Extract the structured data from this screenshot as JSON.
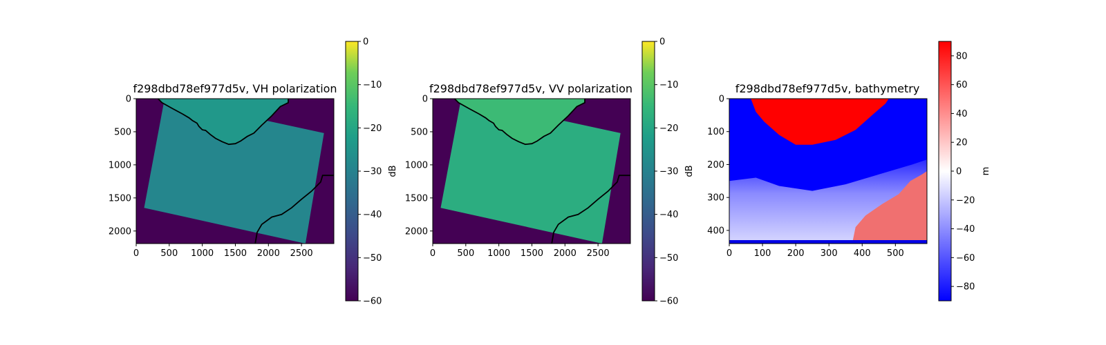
{
  "chart_data": [
    {
      "type": "heatmap",
      "title": "f298dbd78ef977d5v, VH polarization",
      "xlim": [
        0,
        2990
      ],
      "ylim": [
        2190,
        0
      ],
      "xticks": [
        0,
        500,
        1000,
        1500,
        2000,
        2500
      ],
      "yticks": [
        0,
        500,
        1000,
        1500,
        2000
      ],
      "colormap": "viridis",
      "colorbar": {
        "label": "dB",
        "min": -60,
        "max": 0,
        "ticks": [
          0,
          -10,
          -20,
          -30,
          -40,
          -50,
          -60
        ]
      },
      "background_value_db": -60,
      "swath_value_db": -29,
      "land_value_db": -24,
      "swath_corners": [
        [
          430,
          0
        ],
        [
          2840,
          520
        ],
        [
          2560,
          2190
        ],
        [
          120,
          1650
        ]
      ],
      "coastline_north": [
        [
          330,
          0
        ],
        [
          390,
          60
        ],
        [
          550,
          150
        ],
        [
          700,
          230
        ],
        [
          800,
          290
        ],
        [
          850,
          330
        ],
        [
          920,
          370
        ],
        [
          950,
          420
        ],
        [
          1000,
          470
        ],
        [
          1050,
          480
        ],
        [
          1120,
          540
        ],
        [
          1200,
          600
        ],
        [
          1300,
          650
        ],
        [
          1400,
          690
        ],
        [
          1500,
          680
        ],
        [
          1580,
          640
        ],
        [
          1680,
          570
        ],
        [
          1780,
          520
        ],
        [
          1900,
          400
        ],
        [
          2050,
          260
        ],
        [
          2180,
          120
        ],
        [
          2300,
          60
        ],
        [
          2300,
          0
        ]
      ],
      "coastline_south": [
        [
          1800,
          2190
        ],
        [
          1830,
          2020
        ],
        [
          1900,
          1900
        ],
        [
          2050,
          1790
        ],
        [
          2200,
          1750
        ],
        [
          2350,
          1650
        ],
        [
          2500,
          1520
        ],
        [
          2650,
          1400
        ],
        [
          2790,
          1260
        ],
        [
          2820,
          1160
        ],
        [
          2990,
          1160
        ]
      ]
    },
    {
      "type": "heatmap",
      "title": "f298dbd78ef977d5v, VV polarization",
      "xlim": [
        0,
        2990
      ],
      "ylim": [
        2190,
        0
      ],
      "xticks": [
        0,
        500,
        1000,
        1500,
        2000,
        2500
      ],
      "yticks": [
        0,
        500,
        1000,
        1500,
        2000
      ],
      "colormap": "viridis",
      "colorbar": {
        "label": "dB",
        "min": -60,
        "max": 0,
        "ticks": [
          0,
          -10,
          -20,
          -30,
          -40,
          -50,
          -60
        ]
      },
      "background_value_db": -60,
      "swath_value_db": -18,
      "land_value_db": -14,
      "swath_corners": [
        [
          430,
          0
        ],
        [
          2840,
          520
        ],
        [
          2560,
          2190
        ],
        [
          120,
          1650
        ]
      ],
      "coastline_north": [
        [
          330,
          0
        ],
        [
          390,
          60
        ],
        [
          550,
          150
        ],
        [
          700,
          230
        ],
        [
          800,
          290
        ],
        [
          850,
          330
        ],
        [
          920,
          370
        ],
        [
          950,
          420
        ],
        [
          1000,
          470
        ],
        [
          1050,
          480
        ],
        [
          1120,
          540
        ],
        [
          1200,
          600
        ],
        [
          1300,
          650
        ],
        [
          1400,
          690
        ],
        [
          1500,
          680
        ],
        [
          1580,
          640
        ],
        [
          1680,
          570
        ],
        [
          1780,
          520
        ],
        [
          1900,
          400
        ],
        [
          2050,
          260
        ],
        [
          2180,
          120
        ],
        [
          2300,
          60
        ],
        [
          2300,
          0
        ]
      ],
      "coastline_south": [
        [
          1800,
          2190
        ],
        [
          1830,
          2020
        ],
        [
          1900,
          1900
        ],
        [
          2050,
          1790
        ],
        [
          2200,
          1750
        ],
        [
          2350,
          1650
        ],
        [
          2500,
          1520
        ],
        [
          2650,
          1400
        ],
        [
          2790,
          1260
        ],
        [
          2820,
          1160
        ],
        [
          2990,
          1160
        ]
      ]
    },
    {
      "type": "heatmap",
      "title": "f298dbd78ef977d5v, bathymetry",
      "xlim": [
        0,
        595
      ],
      "ylim": [
        440,
        0
      ],
      "xticks": [
        0,
        100,
        200,
        300,
        400,
        500
      ],
      "yticks": [
        0,
        100,
        200,
        300,
        400
      ],
      "colormap": "bwr",
      "colorbar": {
        "label": "m",
        "min": -90,
        "max": 90,
        "ticks": [
          80,
          60,
          40,
          20,
          0,
          -20,
          -40,
          -60,
          -80
        ]
      },
      "deep_value_m": -90,
      "land_north": [
        [
          65,
          0
        ],
        [
          80,
          40
        ],
        [
          105,
          70
        ],
        [
          150,
          110
        ],
        [
          200,
          140
        ],
        [
          250,
          140
        ],
        [
          320,
          125
        ],
        [
          380,
          95
        ],
        [
          430,
          50
        ],
        [
          470,
          15
        ],
        [
          480,
          0
        ]
      ],
      "land_southeast": [
        [
          370,
          440
        ],
        [
          380,
          390
        ],
        [
          410,
          355
        ],
        [
          460,
          320
        ],
        [
          510,
          290
        ],
        [
          545,
          250
        ],
        [
          580,
          230
        ],
        [
          595,
          220
        ],
        [
          595,
          440
        ]
      ]
    }
  ]
}
